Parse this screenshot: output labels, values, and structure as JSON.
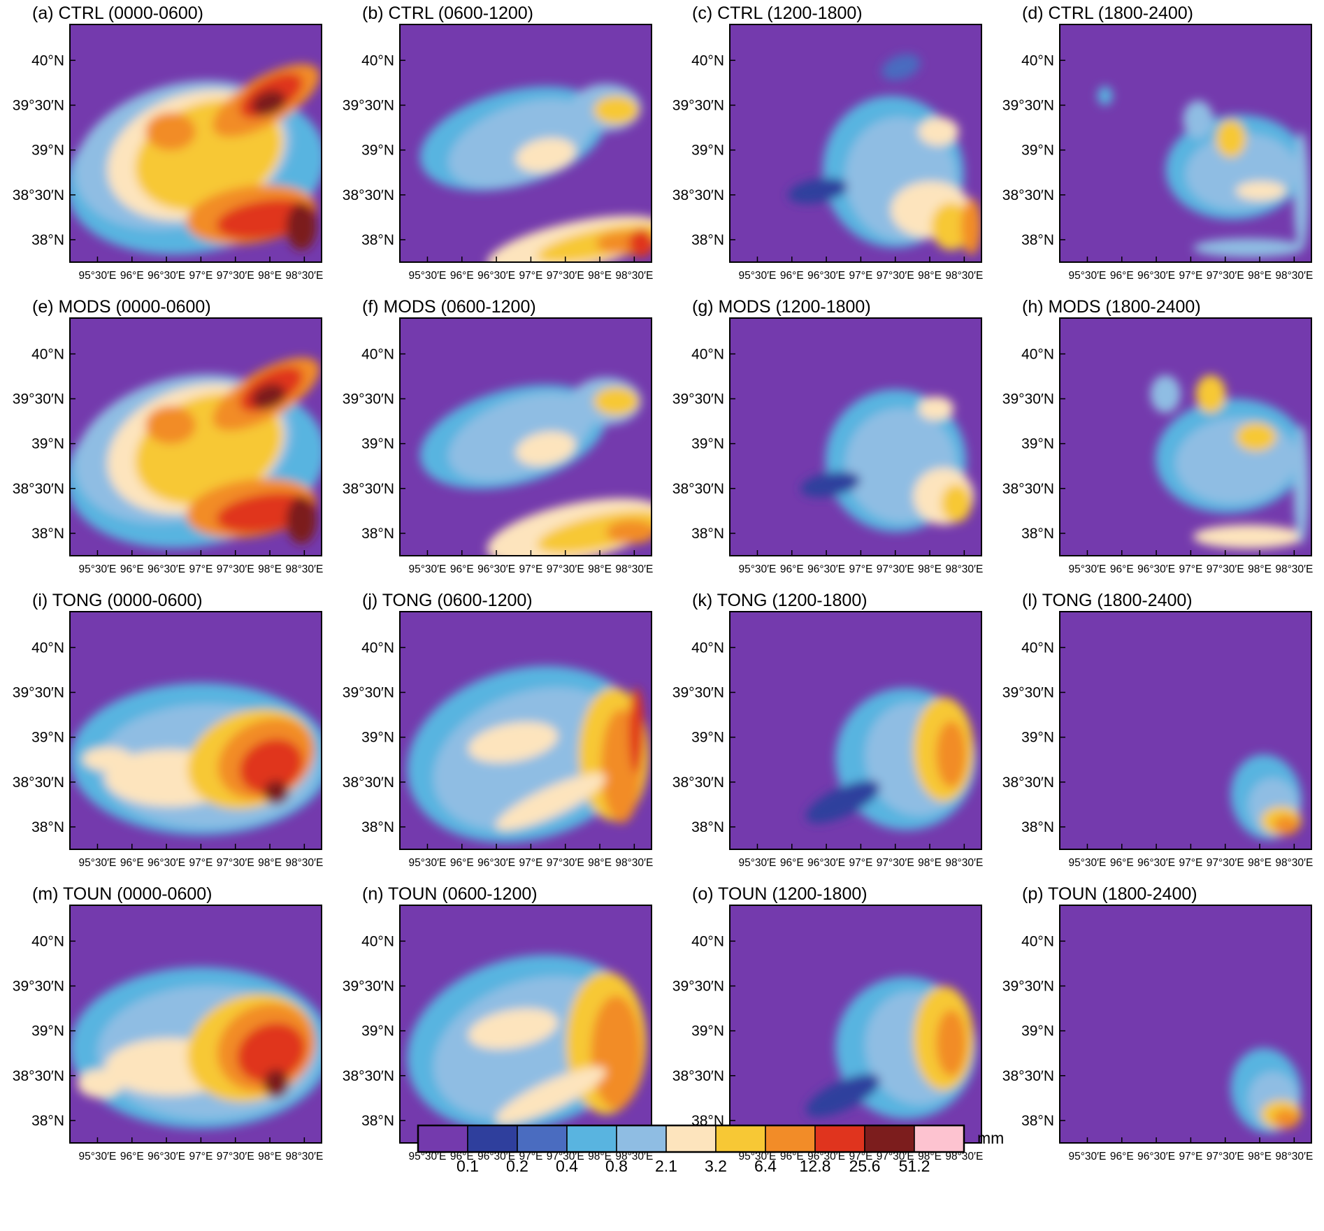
{
  "chart_data": {
    "type": "heatmap",
    "grid": {
      "rows": 4,
      "cols": 4
    },
    "experiments": [
      "CTRL",
      "MODS",
      "TONG",
      "TOUN"
    ],
    "periods": [
      "0000-0600",
      "0600-1200",
      "1200-1800",
      "1800-2400"
    ],
    "panels": [
      {
        "label": "(a) CTRL (0000-0600)"
      },
      {
        "label": "(b) CTRL (0600-1200)"
      },
      {
        "label": "(c) CTRL (1200-1800)"
      },
      {
        "label": "(d) CTRL (1800-2400)"
      },
      {
        "label": "(e) MODS (0000-0600)"
      },
      {
        "label": "(f) MODS (0600-1200)"
      },
      {
        "label": "(g) MODS (1200-1800)"
      },
      {
        "label": "(h) MODS (1800-2400)"
      },
      {
        "label": "(i) TONG (0000-0600)"
      },
      {
        "label": "(j) TONG (0600-1200)"
      },
      {
        "label": "(k) TONG (1200-1800)"
      },
      {
        "label": "(l) TONG (1800-2400)"
      },
      {
        "label": "(m) TOUN (0000-0600)"
      },
      {
        "label": "(n) TOUN (0600-1200)"
      },
      {
        "label": "(o) TOUN (1200-1800)"
      },
      {
        "label": "(p) TOUN (1800-2400)"
      }
    ],
    "x_ticks": [
      "95°30′E",
      "96°E",
      "96°30′E",
      "97°E",
      "97°30′E",
      "98°E",
      "98°30′E"
    ],
    "x_tick_values": [
      95.5,
      96.0,
      96.5,
      97.0,
      97.5,
      98.0,
      98.5
    ],
    "y_ticks": [
      "40°N",
      "39°30′N",
      "39°N",
      "38°30′N",
      "38°N"
    ],
    "y_tick_values": [
      40.0,
      39.5,
      39.0,
      38.5,
      38.0
    ],
    "xlim": [
      95.1,
      98.75
    ],
    "ylim": [
      37.75,
      40.4
    ],
    "colorbar": {
      "unit": "mm",
      "levels": [
        "0.1",
        "0.2",
        "0.4",
        "0.8",
        "2.1",
        "3.2",
        "6.4",
        "12.8",
        "25.6",
        "51.2"
      ],
      "colors": [
        "#743aad",
        "#2f3f9d",
        "#4a6cc0",
        "#59b4e0",
        "#8fbde3",
        "#fde4bd",
        "#f7c835",
        "#f28c28",
        "#e0341e",
        "#7c1d1d",
        "#fdc3d0"
      ]
    }
  }
}
